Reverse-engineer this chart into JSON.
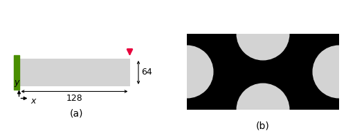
{
  "fig_width": 5.0,
  "fig_height": 2.0,
  "dpi": 100,
  "panel_a": {
    "beam_color": "#d3d3d3",
    "support_color": "#4a8f00",
    "arrow_color": "#e8003c",
    "label_a": "(a)",
    "label_128": "128",
    "label_64": "64"
  },
  "panel_b": {
    "bg_color": "#000000",
    "circle_color": "#d3d3d3",
    "label_b": "(b)"
  },
  "font_size_dim": 9,
  "font_size_caption": 10
}
